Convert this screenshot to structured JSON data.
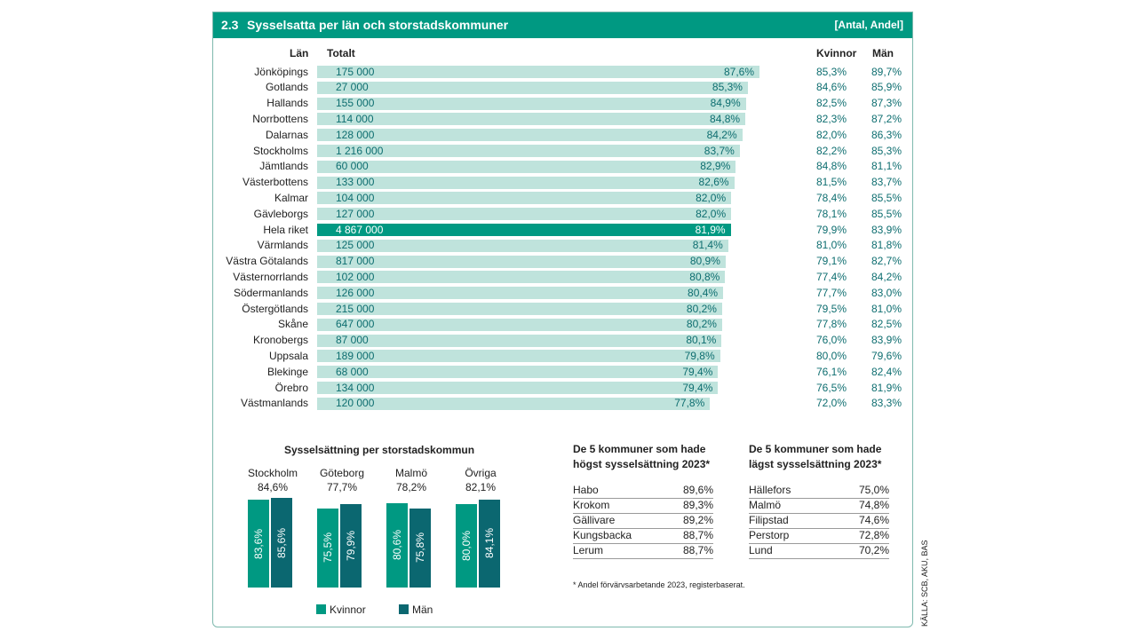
{
  "header": {
    "number": "2.3",
    "title": "Sysselsatta per län och storstadskommuner",
    "unit": "[Antal, Andel]"
  },
  "columns": {
    "lan": "Län",
    "totalt": "Totalt",
    "kvinnor": "Kvinnor",
    "man": "Män"
  },
  "colors": {
    "accent": "#009982",
    "bar": "#bfe3dc",
    "dark": "#0b6770",
    "value_text": "#0e6e70"
  },
  "chart_data": [
    {
      "type": "bar",
      "orientation": "horizontal",
      "xlim": [
        0,
        100
      ],
      "categories": [
        "Jönköpings",
        "Gotlands",
        "Hallands",
        "Norrbottens",
        "Dalarnas",
        "Stockholms",
        "Jämtlands",
        "Västerbottens",
        "Kalmar",
        "Gävleborgs",
        "Hela riket",
        "Värmlands",
        "Västra Götalands",
        "Västernorrlands",
        "Södermanlands",
        "Östergötlands",
        "Skåne",
        "Kronobergs",
        "Uppsala",
        "Blekinge",
        "Örebro",
        "Västmanlands"
      ],
      "totalt": [
        "175 000",
        "27 000",
        "155 000",
        "114 000",
        "128 000",
        "1 216 000",
        "60 000",
        "133 000",
        "104 000",
        "127 000",
        "4 867 000",
        "125 000",
        "817 000",
        "102 000",
        "126 000",
        "215 000",
        "647 000",
        "87 000",
        "189 000",
        "68 000",
        "134 000",
        "120 000"
      ],
      "values": [
        87.6,
        85.3,
        84.9,
        84.8,
        84.2,
        83.7,
        82.9,
        82.6,
        82.0,
        82.0,
        81.9,
        81.4,
        80.9,
        80.8,
        80.4,
        80.2,
        80.2,
        80.1,
        79.8,
        79.4,
        79.4,
        77.8
      ],
      "labels": [
        "87,6%",
        "85,3%",
        "84,9%",
        "84,8%",
        "84,2%",
        "83,7%",
        "82,9%",
        "82,6%",
        "82,0%",
        "82,0%",
        "81,9%",
        "81,4%",
        "80,9%",
        "80,8%",
        "80,4%",
        "80,2%",
        "80,2%",
        "80,1%",
        "79,8%",
        "79,4%",
        "79,4%",
        "77,8%"
      ],
      "kvinnor": [
        "85,3%",
        "84,6%",
        "82,5%",
        "82,3%",
        "82,0%",
        "82,2%",
        "84,8%",
        "81,5%",
        "78,4%",
        "78,1%",
        "79,9%",
        "81,0%",
        "79,1%",
        "77,4%",
        "77,7%",
        "79,5%",
        "77,8%",
        "76,0%",
        "80,0%",
        "76,1%",
        "76,5%",
        "72,0%"
      ],
      "man": [
        "89,7%",
        "85,9%",
        "87,3%",
        "87,2%",
        "86,3%",
        "85,3%",
        "81,1%",
        "83,7%",
        "85,5%",
        "85,5%",
        "83,9%",
        "81,8%",
        "82,7%",
        "84,2%",
        "83,0%",
        "81,0%",
        "82,5%",
        "83,9%",
        "79,6%",
        "82,4%",
        "81,9%",
        "83,3%"
      ],
      "highlight": "Hela riket"
    },
    {
      "type": "bar",
      "title": "Sysselsättning per storstadskommun",
      "categories": [
        "Stockholm",
        "Göteborg",
        "Malmö",
        "Övriga"
      ],
      "totals": [
        "84,6%",
        "77,7%",
        "78,2%",
        "82,1%"
      ],
      "ylim": [
        0,
        100
      ],
      "series": [
        {
          "name": "Kvinnor",
          "values": [
            83.6,
            75.5,
            80.6,
            80.0
          ],
          "labels": [
            "83,6%",
            "75,5%",
            "80,6%",
            "80,0%"
          ],
          "color": "#009982"
        },
        {
          "name": "Män",
          "values": [
            85.6,
            79.9,
            75.8,
            84.1
          ],
          "labels": [
            "85,6%",
            "79,9%",
            "75,8%",
            "84,1%"
          ],
          "color": "#0b6770"
        }
      ]
    }
  ],
  "high_table": {
    "title_line1": "De 5 kommuner som hade",
    "title_line2": "högst sysselsättning 2023*",
    "rows": [
      {
        "name": "Habo",
        "value": "89,6%"
      },
      {
        "name": "Krokom",
        "value": "89,3%"
      },
      {
        "name": "Gällivare",
        "value": "89,2%"
      },
      {
        "name": "Kungsbacka",
        "value": "88,7%"
      },
      {
        "name": "Lerum",
        "value": "88,7%"
      }
    ]
  },
  "low_table": {
    "title_line1": "De 5 kommuner som hade",
    "title_line2": "lägst sysselsättning 2023*",
    "rows": [
      {
        "name": "Hällefors",
        "value": "75,0%"
      },
      {
        "name": "Malmö",
        "value": "74,8%"
      },
      {
        "name": "Filipstad",
        "value": "74,6%"
      },
      {
        "name": "Perstorp",
        "value": "72,8%"
      },
      {
        "name": "Lund",
        "value": "70,2%"
      }
    ]
  },
  "footnote": "* Andel förvärvsarbetande 2023, registerbaserat.",
  "source": "KÄLLA: SCB, AKU, BAS"
}
